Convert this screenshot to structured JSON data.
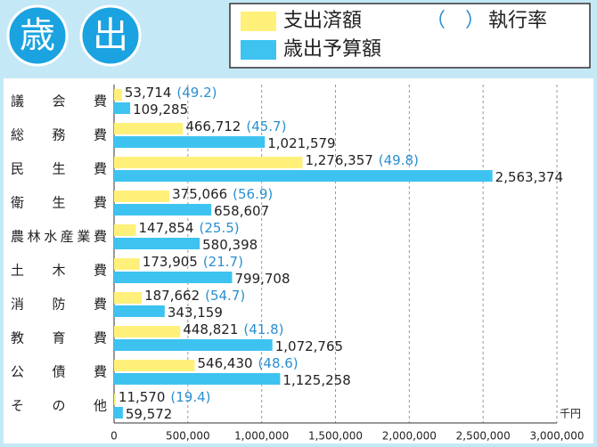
{
  "chart_data": {
    "type": "bar",
    "orientation": "horizontal",
    "title": [
      "歳",
      "出"
    ],
    "unit": "千円",
    "categories": [
      "議会費",
      "総務費",
      "民生費",
      "衛生費",
      "農林水産業費",
      "土木費",
      "消防費",
      "教育費",
      "公債費",
      "その他"
    ],
    "series": [
      {
        "name": "支出済額",
        "color": "#fff07a",
        "values": [
          53714,
          466712,
          1276357,
          375066,
          147854,
          173905,
          187662,
          448821,
          546430,
          11570
        ],
        "value_labels": [
          "53,714",
          "466,712",
          "1,276,357",
          "375,066",
          "147,854",
          "173,905",
          "187,662",
          "448,821",
          "546,430",
          "11,570"
        ]
      },
      {
        "name": "歳出予算額",
        "color": "#3ec3f0",
        "values": [
          109285,
          1021579,
          2563374,
          658607,
          580398,
          799708,
          343159,
          1072765,
          1125258,
          59572
        ],
        "value_labels": [
          "109,285",
          "1,021,579",
          "2,563,374",
          "658,607",
          "580,398",
          "799,708",
          "343,159",
          "1,072,765",
          "1,125,258",
          "59,572"
        ]
      }
    ],
    "rates": {
      "name": "執行率",
      "marker": "（　）",
      "color": "#2a8fd0",
      "values": [
        49.2,
        45.7,
        49.8,
        56.9,
        25.5,
        21.7,
        54.7,
        41.8,
        48.6,
        19.4
      ],
      "value_labels": [
        "(49.2)",
        "(45.7)",
        "(49.8)",
        "(56.9)",
        "(25.5)",
        "(21.7)",
        "(54.7)",
        "(41.8)",
        "(48.6)",
        "(19.4)"
      ]
    },
    "xlim": [
      0,
      3000000
    ],
    "xticks": [
      0,
      {
        "value": 500000,
        "label": "500,000"
      },
      {
        "value": 1000000,
        "label": "1,000,000"
      },
      {
        "value": 1500000,
        "label": "1,500,000"
      },
      {
        "value": 2000000,
        "label": "2,000,000"
      },
      {
        "value": 2500000,
        "label": "2,500,000"
      },
      {
        "value": 3000000,
        "label": "3,000,000"
      }
    ],
    "grid": true
  }
}
